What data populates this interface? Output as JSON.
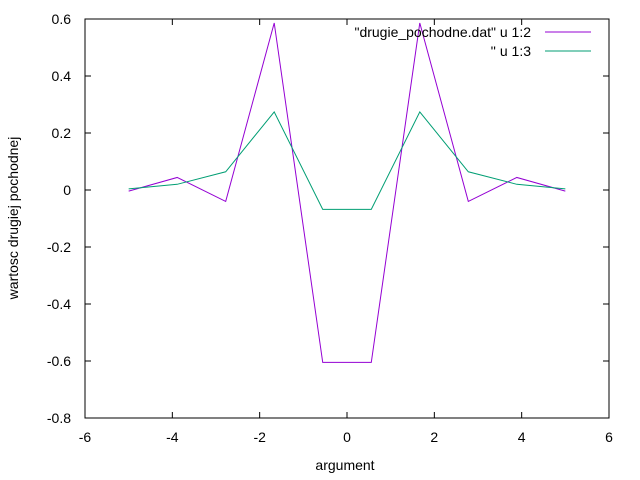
{
  "chart_data": {
    "type": "line",
    "title": "",
    "xlabel": "argument",
    "ylabel": "wartosc drugiej pochodnej",
    "xlim": [
      -6,
      6
    ],
    "ylim": [
      -0.8,
      0.6
    ],
    "x_ticks": [
      -6,
      -4,
      -2,
      0,
      2,
      4,
      6
    ],
    "y_ticks": [
      -0.8,
      -0.6,
      -0.4,
      -0.2,
      0,
      0.2,
      0.4,
      0.6
    ],
    "x_tick_labels": [
      "-6",
      "-4",
      "-2",
      "0",
      "2",
      "4",
      "6"
    ],
    "y_tick_labels": [
      "-0.8",
      "-0.6",
      "-0.4",
      "-0.2",
      "0",
      "0.2",
      "0.4",
      "0.6"
    ],
    "grid": false,
    "legend_position": "top-right",
    "x": [
      -5,
      -3.889,
      -2.778,
      -1.667,
      -0.556,
      0.556,
      1.667,
      2.778,
      3.889,
      5
    ],
    "series": [
      {
        "name": "\"drugie_pochodne.dat\" u 1:2",
        "color": "#9400d3",
        "values": [
          -0.004,
          0.044,
          -0.04,
          0.586,
          -0.605,
          -0.605,
          0.586,
          -0.04,
          0.044,
          -0.004
        ]
      },
      {
        "name": "'' u 1:3",
        "color": "#009e73",
        "values": [
          0.004,
          0.02,
          0.064,
          0.274,
          -0.068,
          -0.068,
          0.274,
          0.064,
          0.02,
          0.004
        ]
      }
    ]
  }
}
